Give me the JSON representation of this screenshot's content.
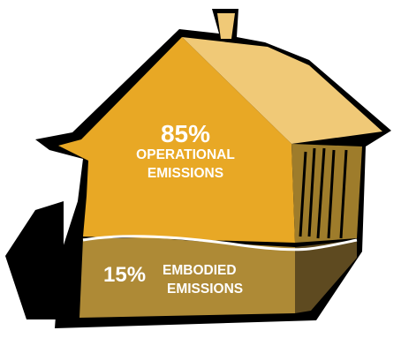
{
  "infographic": {
    "operational": {
      "percent": "85%",
      "line1": "OPERATIONAL",
      "line2": "EMISSIONS",
      "share": 85
    },
    "embodied": {
      "percent": "15%",
      "line1": "EMBODIED",
      "line2": "EMISSIONS",
      "share": 15
    }
  },
  "colors": {
    "front_wall": "#E8A825",
    "roof_light": "#F0C977",
    "side_wall": "#9E7C2B",
    "lower_front": "#AE8A36",
    "lower_side": "#5E4A20",
    "divider": "#FFFFFF",
    "outline": "#000000",
    "label_text": "#FFFFFF"
  }
}
